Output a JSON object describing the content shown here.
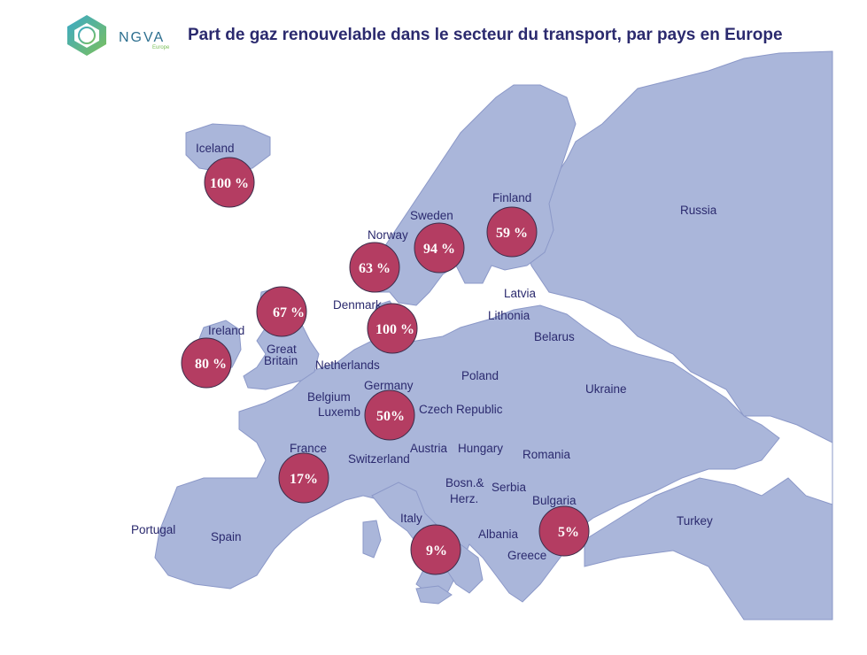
{
  "header": {
    "logo_text": "NGVA",
    "logo_sub": "Europe",
    "title": "Part de gaz renouvelable dans le secteur du transport, par pays en Europe"
  },
  "colors": {
    "land": "#aab6da",
    "border": "#8b98c8",
    "bubble": "#b43d62",
    "bubble_stroke": "#3a2c4a",
    "label": "#2b2a6e"
  },
  "countries": {
    "iceland": "Iceland",
    "finland": "Finland",
    "russia": "Russia",
    "sweden": "Sweden",
    "norway": "Norway",
    "latvia": "Latvia",
    "lithonia": "Lithonia",
    "denmark": "Denmark",
    "belarus": "Belarus",
    "ireland": "Ireland",
    "great_1": "Great",
    "great_2": "Britain",
    "netherlands": "Netherlands",
    "poland": "Poland",
    "ukraine": "Ukraine",
    "germany": "Germany",
    "belgium": "Belgium",
    "luxembourg": "Luxemb",
    "czech": "Czech Republic",
    "austria": "Austria",
    "hungary": "Hungary",
    "romania": "Romania",
    "france": "France",
    "switzerland": "Switzerland",
    "bosnia_1": "Bosn.&",
    "bosnia_2": "Herz.",
    "serbia": "Serbia",
    "bulgaria": "Bulgaria",
    "portugal": "Portugal",
    "italy": "Italy",
    "turkey": "Turkey",
    "spain": "Spain",
    "albania": "Albania",
    "greece": "Greece"
  },
  "shares": {
    "iceland": "100 %",
    "finland": "59 %",
    "sweden": "94 %",
    "norway": "63 %",
    "great_britain": "67 %",
    "denmark": "100 %",
    "ireland": "80 %",
    "germany": "50%",
    "france": "17%",
    "italy": "9%",
    "bulgaria": "5%"
  }
}
